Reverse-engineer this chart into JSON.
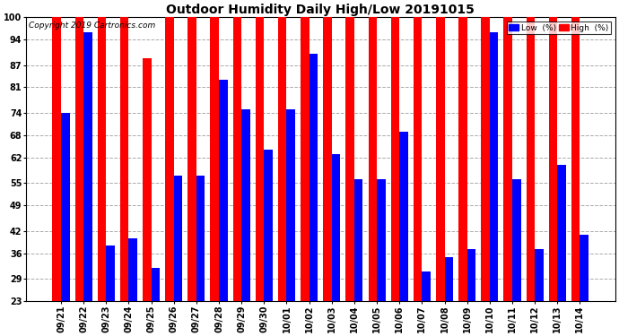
{
  "title": "Outdoor Humidity Daily High/Low 20191015",
  "copyright": "Copyright 2019 Cartronics.com",
  "dates": [
    "09/21",
    "09/22",
    "09/23",
    "09/24",
    "09/25",
    "09/26",
    "09/27",
    "09/28",
    "09/29",
    "09/30",
    "10/01",
    "10/02",
    "10/03",
    "10/04",
    "10/05",
    "10/06",
    "10/07",
    "10/08",
    "10/09",
    "10/10",
    "10/11",
    "10/12",
    "10/13",
    "10/14"
  ],
  "high": [
    100,
    100,
    100,
    100,
    89,
    100,
    100,
    100,
    100,
    100,
    100,
    100,
    100,
    100,
    100,
    100,
    100,
    100,
    100,
    100,
    100,
    100,
    100,
    100
  ],
  "low": [
    74,
    96,
    38,
    40,
    32,
    57,
    57,
    83,
    75,
    64,
    75,
    90,
    63,
    56,
    56,
    69,
    31,
    35,
    37,
    96,
    56,
    37,
    60,
    41
  ],
  "high_color": "#ff0000",
  "low_color": "#0000ff",
  "bg_color": "#ffffff",
  "grid_color": "#aaaaaa",
  "ylim_min": 23,
  "ylim_max": 100,
  "yticks": [
    23,
    29,
    36,
    42,
    49,
    55,
    62,
    68,
    74,
    81,
    87,
    94,
    100
  ],
  "bar_width": 0.38,
  "legend_low_label": "Low  (%)",
  "legend_high_label": "High  (%)",
  "title_fontsize": 10,
  "tick_fontsize": 7,
  "copyright_fontsize": 6.5
}
